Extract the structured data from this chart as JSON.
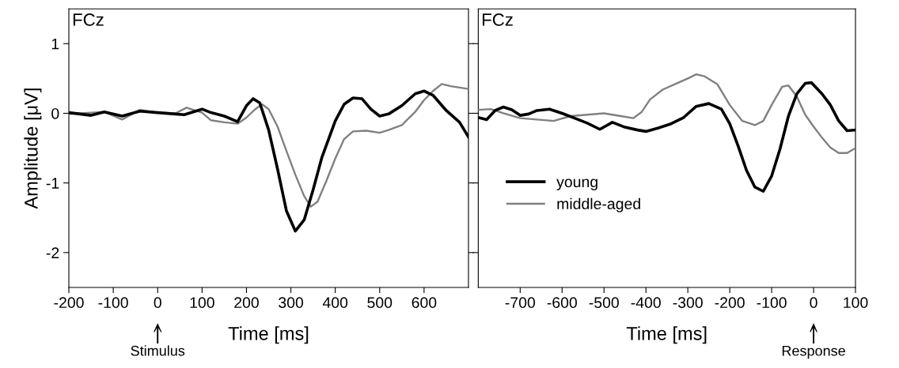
{
  "chart_data": [
    {
      "type": "line",
      "title": "FCz",
      "xlabel": "Time [ms]",
      "ylabel": "Amplitude [μV]",
      "xlim": [
        -200,
        700
      ],
      "xticks": [
        -200,
        -100,
        0,
        100,
        200,
        300,
        400,
        500,
        600
      ],
      "ylim": [
        -2.5,
        1.5
      ],
      "yticks": [
        -2,
        -1,
        0,
        1
      ],
      "grid": false,
      "legend": false,
      "marker": "none",
      "line_style": "solid",
      "annotations": [
        "Stimulus"
      ],
      "series": [
        {
          "color": "#000000",
          "x": [
            -200,
            -150,
            -120,
            -80,
            -40,
            0,
            40,
            60,
            100,
            120,
            150,
            180,
            200,
            215,
            230,
            250,
            270,
            290,
            310,
            330,
            350,
            370,
            400,
            420,
            440,
            460,
            480,
            500,
            520,
            550,
            580,
            600,
            620,
            650,
            680,
            700
          ],
          "values": [
            0.01,
            -0.03,
            0.02,
            -0.04,
            0.03,
            0.01,
            -0.01,
            -0.02,
            0.06,
            0.01,
            -0.04,
            -0.12,
            0.11,
            0.21,
            0.15,
            -0.24,
            -0.8,
            -1.4,
            -1.69,
            -1.53,
            -1.1,
            -0.63,
            -0.11,
            0.13,
            0.22,
            0.21,
            0.06,
            -0.04,
            -0.01,
            0.11,
            0.28,
            0.32,
            0.26,
            0.04,
            -0.13,
            -0.34
          ]
        },
        {
          "color": "#808080",
          "x": [
            -200,
            -150,
            -120,
            -80,
            -40,
            0,
            40,
            65,
            100,
            120,
            150,
            180,
            200,
            220,
            235,
            250,
            270,
            290,
            310,
            330,
            345,
            360,
            380,
            400,
            420,
            440,
            470,
            500,
            520,
            550,
            580,
            600,
            620,
            640,
            660,
            700
          ],
          "values": [
            -0.01,
            0.01,
            0.02,
            -0.09,
            0.05,
            0.01,
            0,
            0.08,
            0.01,
            -0.1,
            -0.13,
            -0.15,
            -0.06,
            0.06,
            0.13,
            0.06,
            -0.19,
            -0.54,
            -0.88,
            -1.19,
            -1.34,
            -1.27,
            -0.97,
            -0.65,
            -0.37,
            -0.26,
            -0.25,
            -0.28,
            -0.24,
            -0.17,
            0.02,
            0.19,
            0.32,
            0.42,
            0.39,
            0.35
          ]
        }
      ]
    },
    {
      "type": "line",
      "title": "FCz",
      "xlabel": "Time [ms]",
      "xlim": [
        -800,
        100
      ],
      "xticks": [
        -700,
        -600,
        -500,
        -400,
        -300,
        -200,
        -100,
        0,
        100
      ],
      "ylim": [
        -2.5,
        1.5
      ],
      "yticks": [
        -2,
        -1,
        0,
        1
      ],
      "tick_labels": "x",
      "grid": false,
      "legend": "lower left",
      "marker": "none",
      "line_style": "solid",
      "annotations": [
        "Response"
      ],
      "series": [
        {
          "name": "young",
          "color": "#000000",
          "x": [
            -800,
            -780,
            -760,
            -740,
            -720,
            -700,
            -680,
            -660,
            -630,
            -600,
            -570,
            -540,
            -510,
            -480,
            -450,
            -420,
            -400,
            -370,
            -340,
            -310,
            -280,
            -250,
            -220,
            -200,
            -180,
            -160,
            -140,
            -120,
            -100,
            -80,
            -60,
            -40,
            -20,
            -5,
            20,
            40,
            60,
            80,
            100
          ],
          "values": [
            -0.06,
            -0.09,
            0.04,
            0.09,
            0.05,
            -0.03,
            -0.01,
            0.04,
            0.06,
            0,
            -0.07,
            -0.14,
            -0.23,
            -0.13,
            -0.2,
            -0.24,
            -0.26,
            -0.21,
            -0.15,
            -0.06,
            0.1,
            0.14,
            0.06,
            -0.15,
            -0.47,
            -0.82,
            -1.06,
            -1.12,
            -0.9,
            -0.51,
            -0.04,
            0.28,
            0.43,
            0.44,
            0.28,
            0.12,
            -0.11,
            -0.25,
            -0.24
          ]
        },
        {
          "name": "middle-aged",
          "color": "#808080",
          "x": [
            -800,
            -770,
            -740,
            -700,
            -660,
            -620,
            -580,
            -540,
            -500,
            -460,
            -430,
            -410,
            -390,
            -360,
            -330,
            -300,
            -280,
            -260,
            -230,
            -200,
            -170,
            -140,
            -120,
            -100,
            -75,
            -60,
            -40,
            -20,
            0,
            20,
            40,
            60,
            80,
            100
          ],
          "values": [
            0.05,
            0.06,
            0,
            -0.07,
            -0.09,
            -0.11,
            -0.04,
            -0.02,
            0,
            -0.04,
            -0.07,
            0.02,
            0.2,
            0.34,
            0.42,
            0.5,
            0.56,
            0.53,
            0.42,
            0.12,
            -0.11,
            -0.17,
            -0.11,
            0.12,
            0.38,
            0.4,
            0.24,
            -0.02,
            -0.19,
            -0.35,
            -0.49,
            -0.57,
            -0.57,
            -0.5
          ]
        }
      ]
    }
  ]
}
